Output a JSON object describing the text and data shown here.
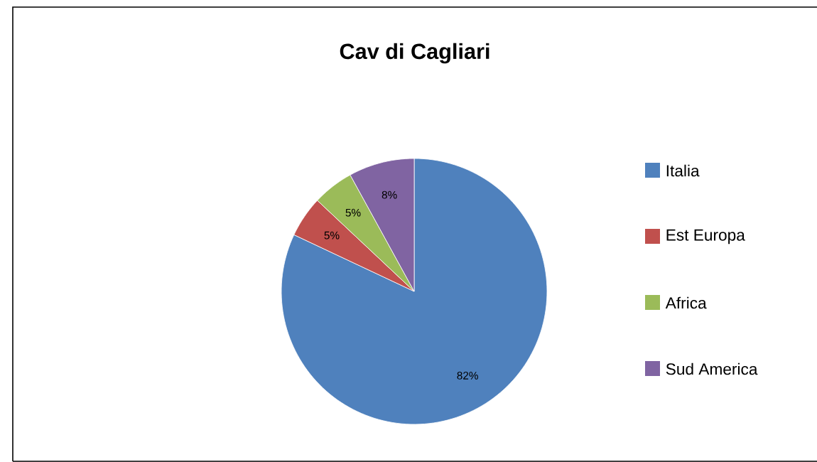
{
  "chart_data": {
    "type": "pie",
    "title": "Cav di Cagliari",
    "categories": [
      "Italia",
      "Est Europa",
      "Africa",
      "Sud America"
    ],
    "values": [
      82,
      5,
      5,
      8
    ],
    "colors": [
      "#4f81bd",
      "#c0504d",
      "#9bbb59",
      "#8064a2"
    ],
    "value_labels": [
      "82%",
      "5%",
      "5%",
      "8%"
    ],
    "legend": "right"
  }
}
